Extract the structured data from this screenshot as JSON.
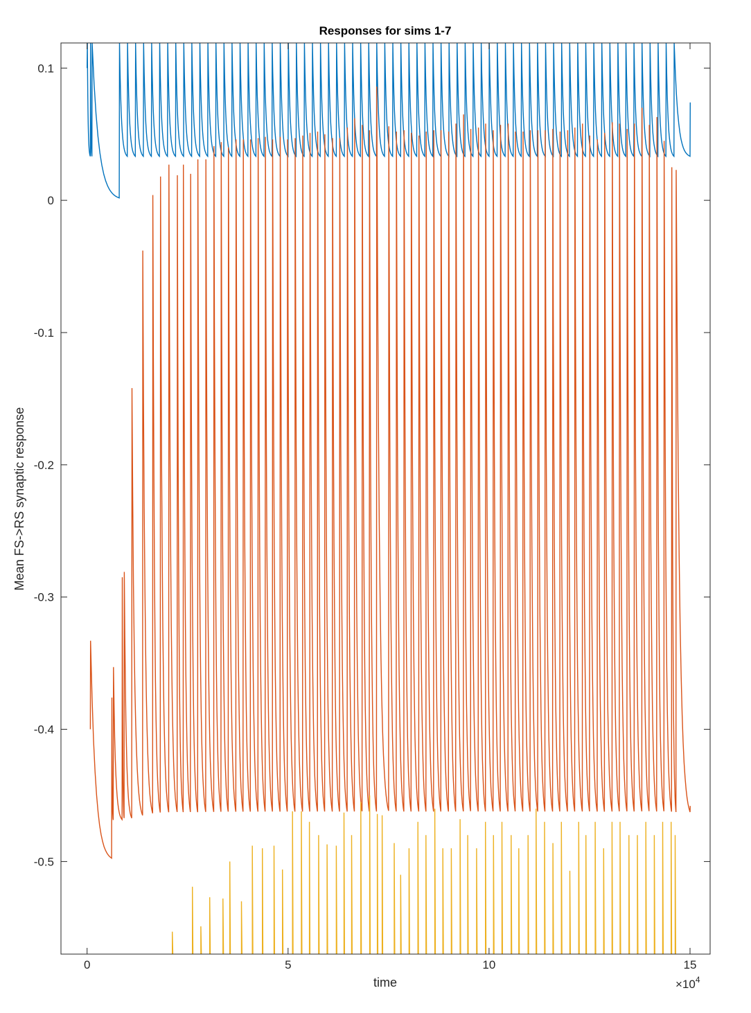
{
  "chart_data": {
    "type": "line",
    "title": "Responses for sims 1-7",
    "xlabel": "time",
    "ylabel": "Mean FS->RS synaptic response",
    "x_exponent_label": "×10",
    "x_exponent_power": "4",
    "xlim": [
      -6500,
      155000
    ],
    "ylim": [
      -0.57,
      0.119
    ],
    "x_ticks": [
      0,
      50000,
      100000,
      150000
    ],
    "x_tick_labels": [
      "0",
      "5",
      "10",
      "15"
    ],
    "y_ticks": [
      0.1,
      0,
      -0.1,
      -0.2,
      -0.3,
      -0.4,
      -0.5
    ],
    "y_tick_labels": [
      "0.1",
      "0",
      "-0.1",
      "-0.2",
      "-0.3",
      "-0.4",
      "-0.5"
    ],
    "grid": false,
    "series": [
      {
        "color": "#0072BD",
        "start_value": 0.1,
        "baseline": 0.032,
        "pulse_times": [
          0,
          800,
          1200,
          8000,
          10000,
          12000,
          14000,
          16000,
          18000,
          20000,
          22000,
          24000,
          26000,
          28000,
          30000,
          32000,
          34000,
          36000,
          38000,
          40000,
          42000,
          44000,
          46000,
          48000,
          50000,
          52000,
          54000,
          56000,
          58000,
          60000,
          62000,
          64000,
          66000,
          68000,
          70000,
          72000,
          74000,
          76000,
          78000,
          80000,
          82000,
          84000,
          86000,
          88000,
          90000,
          92000,
          94000,
          96000,
          98000,
          100000,
          102000,
          104000,
          106000,
          108000,
          110000,
          112000,
          114000,
          116000,
          118000,
          120000,
          122000,
          124000,
          126000,
          128000,
          130000,
          132000,
          134000,
          136000,
          138000,
          140000,
          142000,
          144000,
          146000,
          150000
        ],
        "pulse_peaks": [
          0.119,
          0.119,
          0.119,
          0.119,
          0.119,
          0.119,
          0.119,
          0.119,
          0.119,
          0.119,
          0.119,
          0.119,
          0.119,
          0.119,
          0.119,
          0.119,
          0.119,
          0.119,
          0.119,
          0.119,
          0.119,
          0.119,
          0.119,
          0.119,
          0.119,
          0.119,
          0.119,
          0.119,
          0.119,
          0.119,
          0.119,
          0.119,
          0.119,
          0.119,
          0.119,
          0.119,
          0.119,
          0.119,
          0.119,
          0.119,
          0.119,
          0.119,
          0.119,
          0.119,
          0.119,
          0.119,
          0.119,
          0.119,
          0.119,
          0.119,
          0.119,
          0.119,
          0.119,
          0.119,
          0.119,
          0.119,
          0.119,
          0.119,
          0.119,
          0.119,
          0.119,
          0.119,
          0.119,
          0.119,
          0.119,
          0.119,
          0.119,
          0.119,
          0.119,
          0.119,
          0.119,
          0.119,
          0.119,
          0.074
        ],
        "end_value": 0.004
      },
      {
        "color": "#D95319",
        "start_value": -0.4,
        "baseline": -0.47,
        "pulse_times": [
          800,
          6100,
          6500,
          8700,
          9200,
          11100,
          13800,
          16300,
          18200,
          20300,
          22400,
          23900,
          25700,
          27500,
          29500,
          31500,
          33300,
          35100,
          37000,
          38800,
          40600,
          42500,
          44300,
          46100,
          48000,
          49800,
          51700,
          53600,
          55400,
          57300,
          59100,
          61000,
          62800,
          64700,
          66500,
          68400,
          70200,
          72000,
          75000,
          76900,
          78800,
          80600,
          82500,
          84300,
          86200,
          88000,
          89900,
          91700,
          93600,
          95400,
          97300,
          99100,
          101000,
          102800,
          104700,
          106500,
          108400,
          110200,
          112100,
          113900,
          115800,
          117600,
          119500,
          121300,
          123200,
          125000,
          126900,
          128700,
          130600,
          132400,
          134300,
          136100,
          138000,
          139800,
          141700,
          143500,
          145400,
          146500,
          150000
        ],
        "pulse_peaks": [
          -0.333,
          -0.376,
          -0.353,
          -0.285,
          -0.281,
          -0.142,
          -0.038,
          0.004,
          0.018,
          0.027,
          0.019,
          0.027,
          0.02,
          0.031,
          0.031,
          0.041,
          0.044,
          0.04,
          0.046,
          0.046,
          0.046,
          0.047,
          0.048,
          0.046,
          0.048,
          0.046,
          0.047,
          0.049,
          0.051,
          0.052,
          0.05,
          0.047,
          0.047,
          0.055,
          0.062,
          0.057,
          0.053,
          0.086,
          0.056,
          0.052,
          0.053,
          0.051,
          0.049,
          0.052,
          0.053,
          0.053,
          0.052,
          0.058,
          0.065,
          0.054,
          0.055,
          0.058,
          0.053,
          0.057,
          0.058,
          0.052,
          0.052,
          0.053,
          0.053,
          0.053,
          0.054,
          0.052,
          0.053,
          0.055,
          0.058,
          0.049,
          0.046,
          0.051,
          0.059,
          0.058,
          0.054,
          0.058,
          0.07,
          0.057,
          0.063,
          0.045,
          0.025,
          0.023,
          -0.458
        ],
        "end_value": -0.498
      },
      {
        "color": "#EDB120",
        "pulse_times": [
          21200,
          26200,
          28300,
          30500,
          33800,
          35500,
          38400,
          41100,
          43600,
          46500,
          48600,
          51100,
          53300,
          55300,
          57600,
          59700,
          62000,
          63900,
          65800,
          68100,
          70300,
          72200,
          73400,
          76400,
          78000,
          80100,
          82300,
          84300,
          86500,
          88500,
          90600,
          92800,
          94700,
          96900,
          99100,
          101100,
          103200,
          105500,
          107400,
          109700,
          111700,
          113800,
          115900,
          118000,
          120100,
          122300,
          124100,
          126400,
          128500,
          130600,
          132600,
          134800,
          136900,
          139000,
          141100,
          143200,
          145300,
          146300
        ],
        "pulse_peaks": [
          -0.553,
          -0.519,
          -0.549,
          -0.527,
          -0.528,
          -0.5,
          -0.53,
          -0.488,
          -0.49,
          -0.488,
          -0.506,
          -0.462,
          -0.462,
          -0.47,
          -0.48,
          -0.487,
          -0.488,
          -0.463,
          -0.48,
          -0.455,
          -0.45,
          -0.464,
          -0.465,
          -0.486,
          -0.51,
          -0.49,
          -0.47,
          -0.48,
          -0.46,
          -0.49,
          -0.49,
          -0.468,
          -0.48,
          -0.49,
          -0.47,
          -0.48,
          -0.47,
          -0.48,
          -0.49,
          -0.48,
          -0.46,
          -0.47,
          -0.486,
          -0.47,
          -0.507,
          -0.47,
          -0.48,
          -0.47,
          -0.49,
          -0.47,
          -0.47,
          -0.48,
          -0.48,
          -0.47,
          -0.48,
          -0.47,
          -0.47,
          -0.48
        ],
        "floor_value": -0.57
      }
    ]
  }
}
